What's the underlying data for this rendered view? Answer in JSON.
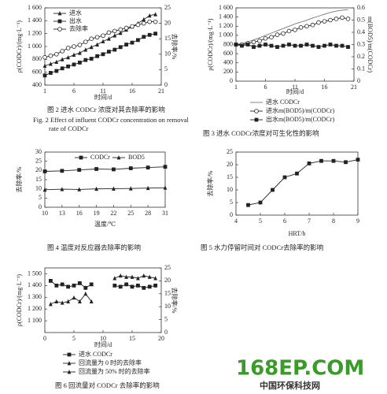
{
  "chart_data": [
    {
      "type": "line",
      "caption": "图 2  进水 CODCr 浓度对其去除率的影响",
      "caption_en": [
        "Fig. 2  Effect of influent CODCr concentration on removal",
        "rate of CODCr"
      ],
      "x_label": "时间/d",
      "y_label": "ρ(CODCr)/(mg·L⁻¹)",
      "y2_label": "去除率/%",
      "x": [
        1,
        2,
        3,
        4,
        5,
        6,
        7,
        8,
        9,
        10,
        11,
        12,
        13,
        14,
        15,
        16,
        17,
        18,
        19,
        20
      ],
      "xlim": [
        1,
        21
      ],
      "xticks": [
        1,
        6,
        11,
        16,
        21
      ],
      "ylim": [
        400,
        1600
      ],
      "yticks": [
        400,
        600,
        800,
        {
          "value": 1000,
          "label": "1 000"
        },
        {
          "value": 1200,
          "label": "1 200"
        },
        {
          "value": 1400,
          "label": "1 400"
        },
        {
          "value": 1600,
          "label": "1 600"
        }
      ],
      "y2lim": [
        0,
        25
      ],
      "y2ticks": [
        0,
        5,
        10,
        15,
        20,
        25
      ],
      "series": [
        {
          "name": "进水",
          "color": "#222",
          "marker": "triangle",
          "values": [
            700,
            730,
            760,
            800,
            830,
            870,
            900,
            950,
            990,
            1030,
            1080,
            1120,
            1170,
            1210,
            1260,
            1310,
            1360,
            1420,
            1480,
            1500
          ]
        },
        {
          "name": "出水",
          "color": "#222",
          "marker": "square",
          "values": [
            550,
            590,
            620,
            660,
            690,
            720,
            750,
            790,
            810,
            850,
            880,
            920,
            950,
            990,
            1030,
            1060,
            1100,
            1150,
            1180,
            1200
          ]
        },
        {
          "name": "去除率",
          "color": "#222",
          "marker": "circle-open",
          "axis": "y2",
          "values": [
            9,
            9.5,
            10,
            11,
            12,
            12.5,
            13,
            14,
            15,
            15.5,
            16,
            17,
            17.5,
            18,
            18.5,
            19,
            19.5,
            20,
            20.5,
            20.5
          ]
        }
      ]
    },
    {
      "type": "line",
      "caption": "图 3  进水 CODCr浓度对可生化性的影响",
      "x_label": "时间/d",
      "y_label": "ρ(CODCr)/(mg·L⁻¹)",
      "y2_label": "m(BOD5)/m(CODCr)",
      "x": [
        1,
        2,
        3,
        4,
        5,
        6,
        7,
        8,
        9,
        10,
        11,
        12,
        13,
        14,
        15,
        16,
        17,
        18,
        19,
        20
      ],
      "xlim": [
        1,
        21
      ],
      "xticks": [
        1,
        6,
        11,
        16,
        21
      ],
      "ylim": [
        0,
        1600
      ],
      "yticks": [
        0,
        200,
        400,
        600,
        800,
        {
          "value": 1000,
          "label": "1 000"
        },
        {
          "value": 1200,
          "label": "1 200"
        },
        {
          "value": 1400,
          "label": "1 400"
        },
        {
          "value": 1600,
          "label": "1 600"
        }
      ],
      "y2lim": [
        0,
        0.6
      ],
      "y2ticks": [
        0,
        0.1,
        0.2,
        0.3,
        0.4,
        0.5,
        0.6
      ],
      "series": [
        {
          "name": "进水 CODCr",
          "color": "#777",
          "marker": "none",
          "values": [
            800,
            820,
            860,
            900,
            950,
            1000,
            1050,
            1100,
            1150,
            1200,
            1250,
            1290,
            1330,
            1380,
            1420,
            1460,
            1500,
            1530,
            1550,
            1560
          ]
        },
        {
          "name": "进水m(BOD5)/m(CODCr)",
          "color": "#222",
          "marker": "circle-open",
          "axis": "y2",
          "values": [
            0.3,
            0.3,
            0.31,
            0.32,
            0.33,
            0.35,
            0.36,
            0.38,
            0.39,
            0.41,
            0.42,
            0.44,
            0.45,
            0.46,
            0.48,
            0.49,
            0.5,
            0.51,
            0.52,
            0.51
          ]
        },
        {
          "name": "出水m(BOD5)/m(CODCr)",
          "color": "#222",
          "marker": "square",
          "axis": "y2",
          "values": [
            0.3,
            0.29,
            0.3,
            0.28,
            0.29,
            0.3,
            0.29,
            0.28,
            0.29,
            0.3,
            0.29,
            0.29,
            0.3,
            0.29,
            0.28,
            0.29,
            0.3,
            0.29,
            0.29,
            0.28
          ]
        }
      ]
    },
    {
      "type": "line",
      "caption": "图 4  温度对反应器去除率的影响",
      "x_label": "温度/℃",
      "y_label": "去除率/%",
      "x": [
        10,
        13,
        16,
        19,
        22,
        25,
        28,
        31
      ],
      "xlim": [
        10,
        31
      ],
      "xticks": [
        10,
        13,
        16,
        19,
        22,
        25,
        28,
        31
      ],
      "ylim": [
        0,
        30
      ],
      "yticks": [
        0,
        5,
        10,
        15,
        20,
        25,
        30
      ],
      "series": [
        {
          "name": "CODCr",
          "color": "#222",
          "marker": "square",
          "values": [
            19.5,
            19.8,
            20.3,
            20.8,
            20.6,
            21.2,
            21.6,
            22
          ]
        },
        {
          "name": "BOD5",
          "color": "#222",
          "marker": "triangle",
          "values": [
            9.5,
            9.8,
            9.7,
            10,
            10.1,
            10.2,
            10.4,
            10.6
          ]
        }
      ]
    },
    {
      "type": "line",
      "caption": "图 5  水力停留时间对 CODCr去除率的影响",
      "x_label": "HRT/h",
      "y_label": "去除率/%",
      "x": [
        4.5,
        5,
        5.5,
        6,
        6.5,
        7,
        7.5,
        8,
        8.5,
        9
      ],
      "xlim": [
        4,
        9
      ],
      "xticks": [
        4,
        5,
        6,
        7,
        8,
        9
      ],
      "ylim": [
        0,
        25
      ],
      "yticks": [
        0,
        5,
        10,
        15,
        20,
        25
      ],
      "series": [
        {
          "name": "去除率",
          "color": "#222",
          "marker": "square",
          "values": [
            4,
            5,
            10,
            15,
            16.5,
            20.5,
            21.5,
            21.5,
            21,
            22
          ]
        }
      ]
    },
    {
      "type": "line",
      "caption": "图 6  回流量对 CODCr 去除率的影响",
      "x_label": "时间/d",
      "y_label": "ρ(CODCr)/(mg·L⁻¹)",
      "y2_label": "去除率/%",
      "x": [
        1,
        2,
        3,
        4,
        5,
        6,
        7,
        8,
        9,
        10,
        11,
        12,
        13,
        14,
        15,
        16,
        17,
        18,
        19
      ],
      "xlim": [
        0,
        20
      ],
      "xticks": [
        0,
        5,
        10,
        15,
        20
      ],
      "ylim": [
        1000,
        1550
      ],
      "yticks": [
        {
          "value": 1100,
          "label": "1 100"
        },
        {
          "value": 1200,
          "label": "1 200"
        },
        {
          "value": 1300,
          "label": "1 300"
        },
        {
          "value": 1400,
          "label": "1 400"
        },
        {
          "value": 1500,
          "label": "1 500"
        }
      ],
      "y2lim": [
        0,
        25
      ],
      "y2ticks": [
        0,
        5,
        10,
        15,
        20,
        25
      ],
      "series": [
        {
          "name": "进水 CODCr",
          "color": "#222",
          "marker": "square",
          "values": [
            1440,
            1400,
            1410,
            1390,
            1400,
            1420,
            1380,
            1410,
            null,
            null,
            null,
            1400,
            1390,
            1410,
            1390,
            1400,
            1380,
            1390,
            1400
          ]
        },
        {
          "name": "回流量为 0 时的去除率",
          "color": "#222",
          "marker": "triangle",
          "axis": "y2",
          "values": [
            11,
            12,
            11.5,
            12,
            13.5,
            12,
            15,
            12,
            null,
            null,
            null,
            null,
            null,
            null,
            null,
            null,
            null,
            null,
            null
          ]
        },
        {
          "name": "回流量为 50% 时的去除率",
          "color": "#222",
          "marker": "triangle",
          "axis": "y2",
          "values": [
            null,
            null,
            null,
            null,
            null,
            null,
            null,
            null,
            null,
            null,
            null,
            21,
            22,
            21.5,
            21.5,
            21,
            22,
            21.5,
            21
          ]
        }
      ]
    }
  ],
  "watermark": {
    "logo": "168EP.COM",
    "text": "中国环保科技网"
  }
}
